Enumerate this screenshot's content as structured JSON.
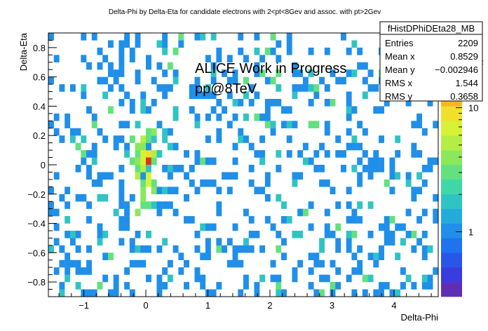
{
  "chart_data": {
    "type": "heatmap",
    "title": "Delta-Phi by Delta-Eta for candidate electrons with 2<pt<8Gev and assoc. with pt>2Gev",
    "xlabel": "Delta-Phi",
    "ylabel": "Delta-Eta",
    "xlim": [
      -1.571,
      4.712
    ],
    "ylim": [
      -0.9,
      0.9
    ],
    "x_ticks": [
      -1,
      0,
      1,
      2,
      3,
      4
    ],
    "y_ticks": [
      -0.8,
      -0.6,
      -0.4,
      -0.2,
      0,
      0.2,
      0.4,
      0.6,
      0.8
    ],
    "x_bins": 72,
    "y_bins": 36,
    "z_scale": "log",
    "z_range": [
      0.3,
      40
    ],
    "z_ticks": [
      1,
      10
    ],
    "z_label_partial": "2",
    "peak": {
      "x": 0.0,
      "y": 0.0,
      "z": 30
    },
    "overlay_lines": [
      "ALICE Work in Progress",
      "pp@8TeV"
    ],
    "stats_box": {
      "name": "fHistDPhiDEta28_MB",
      "rows": [
        {
          "label": "Entries",
          "value": "2209"
        },
        {
          "label": "Mean x",
          "value": "0.8529"
        },
        {
          "label": "Mean y",
          "value": "−0.002946"
        },
        {
          "label": "RMS x",
          "value": "1.544"
        },
        {
          "label": "RMS y",
          "value": "0.3658"
        }
      ]
    },
    "palette": [
      "#5e2fb5",
      "#3a3ce0",
      "#2a56e8",
      "#1f73ee",
      "#1f8fe9",
      "#25abd9",
      "#2fc4c4",
      "#3fd7a5",
      "#62e17e",
      "#8be85c",
      "#b3ee44",
      "#d7f236",
      "#f0e02c",
      "#f7b625",
      "#f2861f",
      "#e95a1a",
      "#dd3214",
      "#c81010"
    ]
  }
}
